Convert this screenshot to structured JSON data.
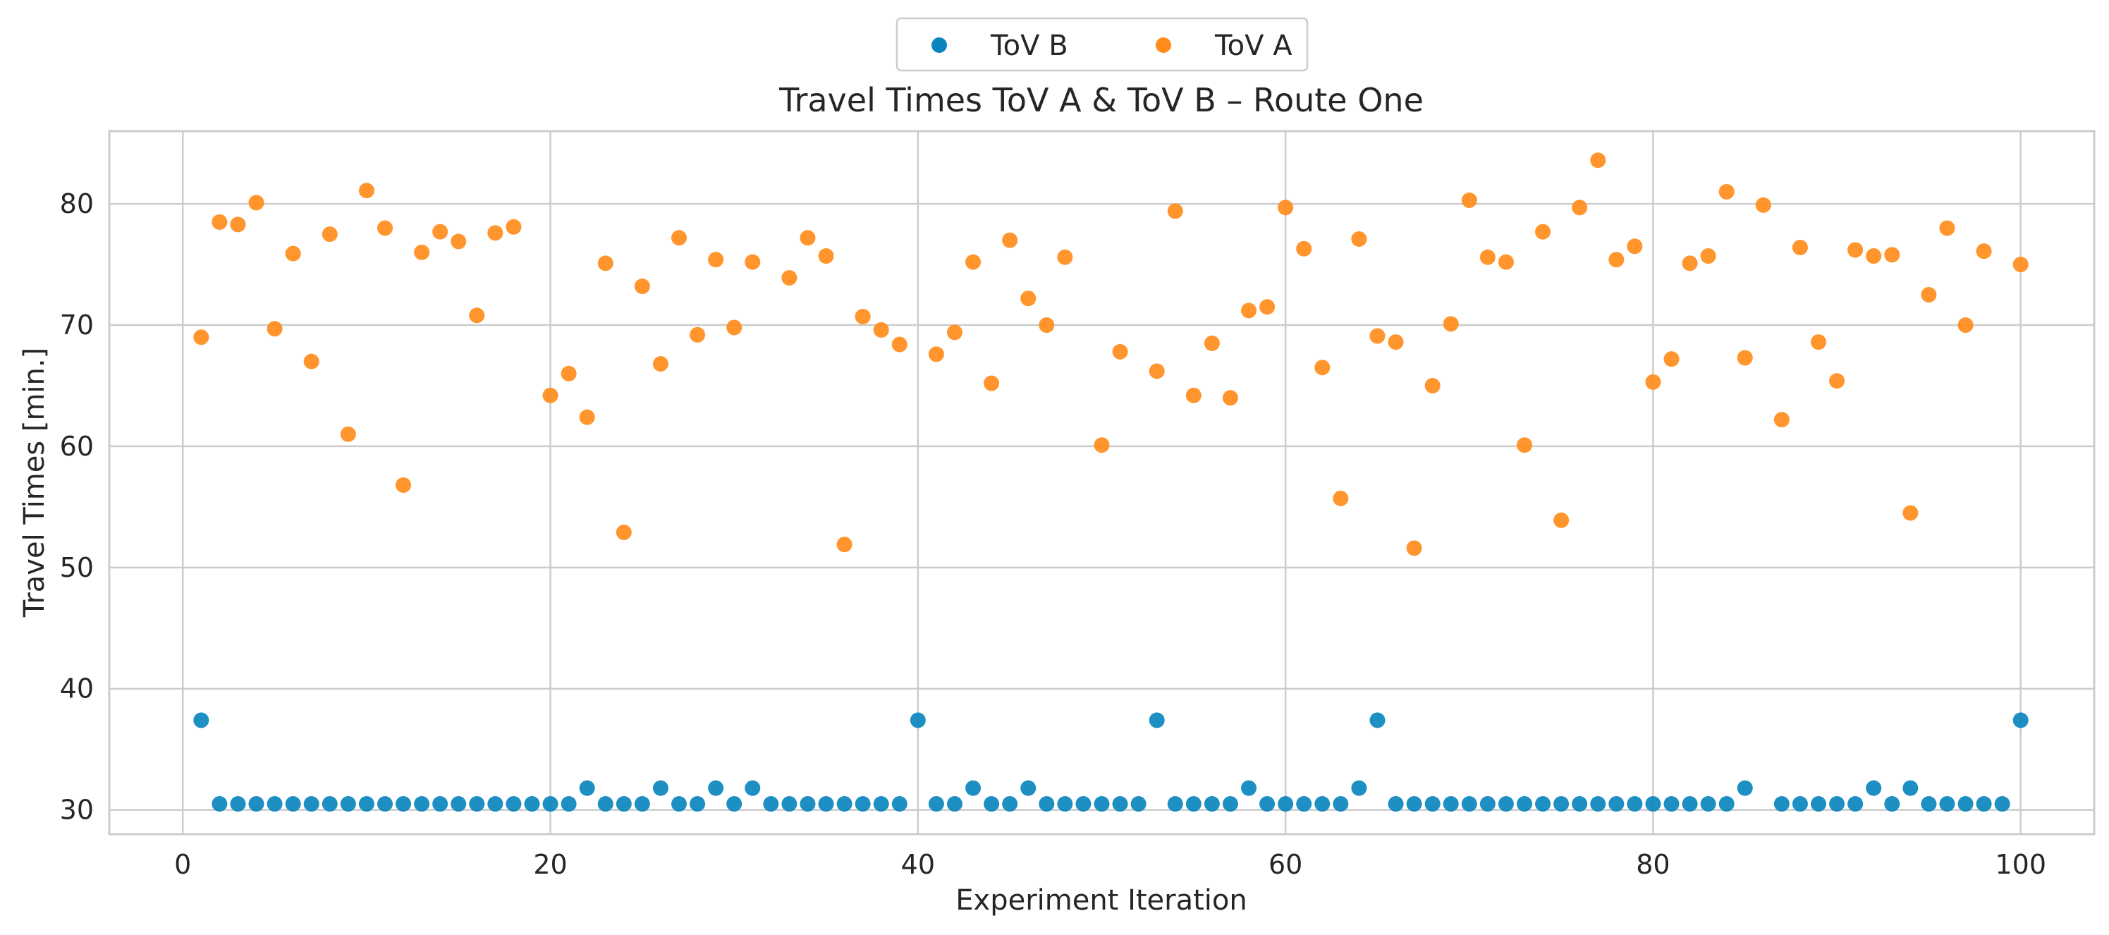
{
  "chart_data": {
    "type": "scatter",
    "title": "Travel Times ToV A & ToV B – Route One",
    "xlabel": "Experiment Iteration",
    "ylabel": "Travel Times [min.]",
    "xlim": [
      -4,
      104
    ],
    "ylim": [
      28,
      86
    ],
    "xticks": [
      0,
      20,
      40,
      60,
      80,
      100
    ],
    "yticks": [
      30,
      40,
      50,
      60,
      70,
      80
    ],
    "grid": true,
    "legend": {
      "position": "top-center",
      "columns": 2
    },
    "series": [
      {
        "name": "ToV B",
        "color": "#0a85be",
        "x": [
          1,
          2,
          3,
          4,
          5,
          6,
          7,
          8,
          9,
          10,
          11,
          12,
          13,
          14,
          15,
          16,
          17,
          18,
          19,
          20,
          21,
          22,
          23,
          24,
          25,
          26,
          27,
          28,
          29,
          30,
          31,
          32,
          33,
          34,
          35,
          36,
          37,
          38,
          39,
          40,
          41,
          42,
          43,
          44,
          45,
          46,
          47,
          48,
          49,
          50,
          51,
          52,
          53,
          54,
          55,
          56,
          57,
          58,
          59,
          60,
          61,
          62,
          63,
          64,
          65,
          66,
          67,
          68,
          69,
          70,
          71,
          72,
          73,
          74,
          75,
          76,
          77,
          78,
          79,
          80,
          81,
          82,
          83,
          84,
          85,
          86,
          87,
          88,
          89,
          90,
          91,
          92,
          93,
          94,
          95,
          96,
          97,
          98,
          99,
          100
        ],
        "y": [
          37.4,
          30.5,
          30.5,
          30.5,
          30.5,
          30.5,
          30.5,
          30.5,
          30.5,
          30.5,
          30.5,
          30.5,
          30.5,
          30.5,
          30.5,
          30.5,
          30.5,
          30.5,
          30.5,
          30.5,
          30.5,
          31.8,
          30.5,
          30.5,
          30.5,
          31.8,
          30.5,
          30.5,
          31.8,
          30.5,
          31.8,
          30.5,
          30.5,
          30.5,
          30.5,
          30.5,
          30.5,
          30.5,
          30.5,
          37.4,
          30.5,
          30.5,
          31.8,
          30.5,
          30.5,
          31.8,
          30.5,
          30.5,
          30.5,
          30.5,
          30.5,
          30.5,
          37.4,
          30.5,
          30.5,
          30.5,
          30.5,
          31.8,
          30.5,
          30.5,
          30.5,
          30.5,
          30.5,
          31.8,
          37.4,
          30.5,
          30.5,
          30.5,
          30.5,
          30.5,
          30.5,
          30.5,
          30.5,
          30.5,
          30.5,
          30.5,
          30.5,
          30.5,
          30.5,
          30.5,
          30.5,
          30.5,
          30.5,
          30.5,
          31.8,
          null,
          30.5,
          30.5,
          30.5,
          30.5,
          30.5,
          31.8,
          30.5,
          31.8,
          30.5,
          30.5,
          30.5,
          30.5,
          30.5,
          37.4
        ]
      },
      {
        "name": "ToV A",
        "color": "#ff8c1a",
        "x": [
          1,
          2,
          3,
          4,
          5,
          6,
          7,
          8,
          9,
          10,
          11,
          12,
          13,
          14,
          15,
          16,
          17,
          18,
          19,
          20,
          21,
          22,
          23,
          24,
          25,
          26,
          27,
          28,
          29,
          30,
          31,
          32,
          33,
          34,
          35,
          36,
          37,
          38,
          39,
          40,
          41,
          42,
          43,
          44,
          45,
          46,
          47,
          48,
          49,
          50,
          51,
          52,
          53,
          54,
          55,
          56,
          57,
          58,
          59,
          60,
          61,
          62,
          63,
          64,
          65,
          66,
          67,
          68,
          69,
          70,
          71,
          72,
          73,
          74,
          75,
          76,
          77,
          78,
          79,
          80,
          81,
          82,
          83,
          84,
          85,
          86,
          87,
          88,
          89,
          90,
          91,
          92,
          93,
          94,
          95,
          96,
          97,
          98,
          99,
          100
        ],
        "y": [
          69.0,
          78.5,
          78.3,
          80.1,
          69.7,
          75.9,
          67.0,
          77.5,
          61.0,
          81.1,
          78.0,
          56.8,
          76.0,
          77.7,
          76.9,
          70.8,
          77.6,
          78.1,
          null,
          64.2,
          66.0,
          62.4,
          75.1,
          52.9,
          73.2,
          66.8,
          77.2,
          69.2,
          75.4,
          69.8,
          75.2,
          null,
          73.9,
          77.2,
          75.7,
          51.9,
          70.7,
          69.6,
          68.4,
          null,
          67.6,
          69.4,
          75.2,
          65.2,
          77.0,
          72.2,
          70.0,
          75.6,
          null,
          60.1,
          67.8,
          null,
          66.2,
          79.4,
          64.2,
          68.5,
          64.0,
          71.2,
          71.5,
          79.7,
          76.3,
          66.5,
          55.7,
          77.1,
          69.1,
          68.6,
          51.6,
          65.0,
          70.1,
          80.3,
          75.6,
          75.2,
          60.1,
          77.7,
          53.9,
          79.7,
          83.6,
          75.4,
          76.5,
          65.3,
          67.2,
          75.1,
          75.7,
          81.0,
          67.3,
          79.9,
          62.2,
          76.4,
          68.6,
          65.4,
          76.2,
          75.7,
          75.8,
          54.5,
          72.5,
          78.0,
          70.0,
          76.1,
          null,
          75.0
        ]
      }
    ]
  }
}
